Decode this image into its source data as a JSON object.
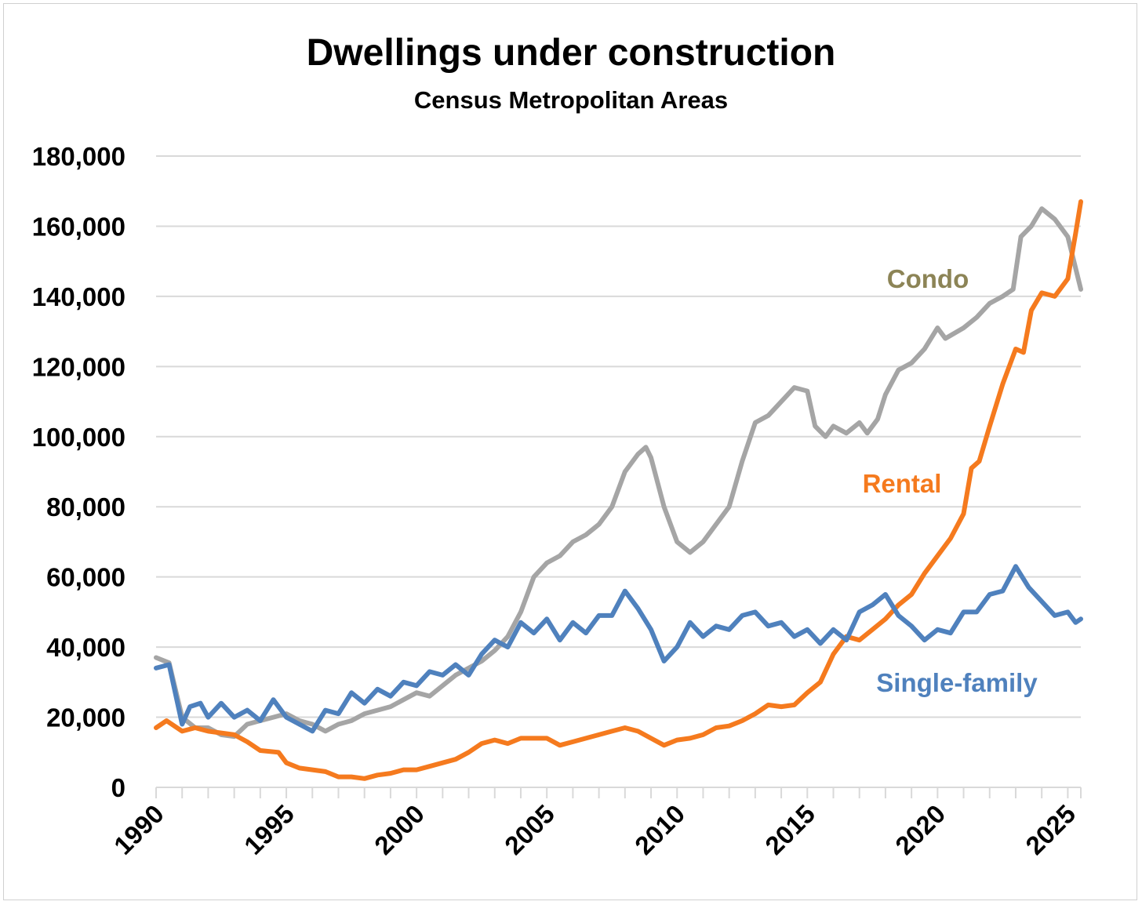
{
  "chart_data": {
    "type": "line",
    "title": "Dwellings under construction",
    "subtitle": "Census Metropolitan Areas",
    "xlabel": "",
    "ylabel": "",
    "xlim": [
      1990,
      2025.5
    ],
    "ylim": [
      0,
      180000
    ],
    "grid": true,
    "y_ticks": [
      0,
      20000,
      40000,
      60000,
      80000,
      100000,
      120000,
      140000,
      160000,
      180000
    ],
    "y_tick_labels": [
      "0",
      "20,000",
      "40,000",
      "60,000",
      "80,000",
      "100,000",
      "120,000",
      "140,000",
      "160,000",
      "180,000"
    ],
    "x_ticks": [
      1990,
      1995,
      2000,
      2005,
      2010,
      2015,
      2020,
      2025
    ],
    "x_tick_labels": [
      "1990",
      "1995",
      "2000",
      "2005",
      "2010",
      "2015",
      "2020",
      "2025"
    ],
    "legend": "inline labels",
    "series": [
      {
        "name": "Condo",
        "color": "#A5A5A5",
        "label_color": "#8C8456",
        "points": [
          [
            1990,
            37000
          ],
          [
            1990.5,
            35500
          ],
          [
            1991,
            20000
          ],
          [
            1991.5,
            17000
          ],
          [
            1992,
            17000
          ],
          [
            1992.5,
            15000
          ],
          [
            1993,
            14500
          ],
          [
            1993.5,
            18000
          ],
          [
            1994,
            19000
          ],
          [
            1994.5,
            20000
          ],
          [
            1995,
            21000
          ],
          [
            1995.5,
            19000
          ],
          [
            1996,
            18000
          ],
          [
            1996.5,
            16000
          ],
          [
            1997,
            18000
          ],
          [
            1997.5,
            19000
          ],
          [
            1998,
            21000
          ],
          [
            1998.5,
            22000
          ],
          [
            1999,
            23000
          ],
          [
            1999.5,
            25000
          ],
          [
            2000,
            27000
          ],
          [
            2000.5,
            26000
          ],
          [
            2001,
            29000
          ],
          [
            2001.5,
            32000
          ],
          [
            2002,
            34000
          ],
          [
            2002.5,
            36000
          ],
          [
            2003,
            39000
          ],
          [
            2003.5,
            43000
          ],
          [
            2004,
            50000
          ],
          [
            2004.5,
            60000
          ],
          [
            2005,
            64000
          ],
          [
            2005.5,
            66000
          ],
          [
            2006,
            70000
          ],
          [
            2006.5,
            72000
          ],
          [
            2007,
            75000
          ],
          [
            2007.5,
            80000
          ],
          [
            2008,
            90000
          ],
          [
            2008.5,
            95000
          ],
          [
            2008.8,
            97000
          ],
          [
            2009,
            94000
          ],
          [
            2009.5,
            80000
          ],
          [
            2010,
            70000
          ],
          [
            2010.5,
            67000
          ],
          [
            2011,
            70000
          ],
          [
            2011.5,
            75000
          ],
          [
            2012,
            80000
          ],
          [
            2012.5,
            93000
          ],
          [
            2013,
            104000
          ],
          [
            2013.5,
            106000
          ],
          [
            2014,
            110000
          ],
          [
            2014.5,
            114000
          ],
          [
            2015,
            113000
          ],
          [
            2015.3,
            103000
          ],
          [
            2015.7,
            100000
          ],
          [
            2016,
            103000
          ],
          [
            2016.5,
            101000
          ],
          [
            2017,
            104000
          ],
          [
            2017.3,
            101000
          ],
          [
            2017.7,
            105000
          ],
          [
            2018,
            112000
          ],
          [
            2018.5,
            119000
          ],
          [
            2019,
            121000
          ],
          [
            2019.5,
            125000
          ],
          [
            2020,
            131000
          ],
          [
            2020.3,
            128000
          ],
          [
            2021,
            131000
          ],
          [
            2021.5,
            134000
          ],
          [
            2022,
            138000
          ],
          [
            2022.5,
            140000
          ],
          [
            2022.9,
            142000
          ],
          [
            2023.2,
            157000
          ],
          [
            2023.6,
            160000
          ],
          [
            2024,
            165000
          ],
          [
            2024.5,
            162000
          ],
          [
            2025,
            157000
          ],
          [
            2025.3,
            148000
          ],
          [
            2025.5,
            142000
          ]
        ]
      },
      {
        "name": "Rental",
        "color": "#F57A1E",
        "label_color": "#F57A1E",
        "points": [
          [
            1990,
            17000
          ],
          [
            1990.4,
            19000
          ],
          [
            1991,
            16000
          ],
          [
            1991.5,
            17000
          ],
          [
            1992,
            16000
          ],
          [
            1993,
            15000
          ],
          [
            1993.5,
            13000
          ],
          [
            1994,
            10500
          ],
          [
            1994.7,
            10000
          ],
          [
            1995,
            7000
          ],
          [
            1995.5,
            5500
          ],
          [
            1996,
            5000
          ],
          [
            1996.5,
            4500
          ],
          [
            1997,
            3000
          ],
          [
            1997.5,
            3000
          ],
          [
            1998,
            2500
          ],
          [
            1998.5,
            3500
          ],
          [
            1999,
            4000
          ],
          [
            1999.5,
            5000
          ],
          [
            2000,
            5000
          ],
          [
            2000.5,
            6000
          ],
          [
            2001,
            7000
          ],
          [
            2001.5,
            8000
          ],
          [
            2002,
            10000
          ],
          [
            2002.5,
            12500
          ],
          [
            2003,
            13500
          ],
          [
            2003.5,
            12500
          ],
          [
            2004,
            14000
          ],
          [
            2005,
            14000
          ],
          [
            2005.5,
            12000
          ],
          [
            2006,
            13000
          ],
          [
            2006.5,
            14000
          ],
          [
            2007,
            15000
          ],
          [
            2007.5,
            16000
          ],
          [
            2008,
            17000
          ],
          [
            2008.5,
            16000
          ],
          [
            2009,
            14000
          ],
          [
            2009.5,
            12000
          ],
          [
            2010,
            13500
          ],
          [
            2010.5,
            14000
          ],
          [
            2011,
            15000
          ],
          [
            2011.5,
            17000
          ],
          [
            2012,
            17500
          ],
          [
            2012.5,
            19000
          ],
          [
            2013,
            21000
          ],
          [
            2013.5,
            23500
          ],
          [
            2014,
            23000
          ],
          [
            2014.5,
            23500
          ],
          [
            2015,
            27000
          ],
          [
            2015.5,
            30000
          ],
          [
            2016,
            38000
          ],
          [
            2016.5,
            43000
          ],
          [
            2017,
            42000
          ],
          [
            2017.5,
            45000
          ],
          [
            2018,
            48000
          ],
          [
            2018.5,
            52000
          ],
          [
            2019,
            55000
          ],
          [
            2019.5,
            61000
          ],
          [
            2020,
            66000
          ],
          [
            2020.5,
            71000
          ],
          [
            2021,
            78000
          ],
          [
            2021.3,
            91000
          ],
          [
            2021.6,
            93000
          ],
          [
            2022,
            103000
          ],
          [
            2022.5,
            115000
          ],
          [
            2023,
            125000
          ],
          [
            2023.3,
            124000
          ],
          [
            2023.6,
            136000
          ],
          [
            2024,
            141000
          ],
          [
            2024.5,
            140000
          ],
          [
            2025,
            145000
          ],
          [
            2025.3,
            158000
          ],
          [
            2025.5,
            167000
          ]
        ]
      },
      {
        "name": "Single-family",
        "color": "#4F81BD",
        "label_color": "#4F81BD",
        "points": [
          [
            1990,
            34000
          ],
          [
            1990.5,
            35000
          ],
          [
            1991,
            18000
          ],
          [
            1991.3,
            23000
          ],
          [
            1991.7,
            24000
          ],
          [
            1992,
            20000
          ],
          [
            1992.5,
            24000
          ],
          [
            1993,
            20000
          ],
          [
            1993.5,
            22000
          ],
          [
            1994,
            19000
          ],
          [
            1994.5,
            25000
          ],
          [
            1995,
            20000
          ],
          [
            1995.5,
            18000
          ],
          [
            1996,
            16000
          ],
          [
            1996.5,
            22000
          ],
          [
            1997,
            21000
          ],
          [
            1997.5,
            27000
          ],
          [
            1998,
            24000
          ],
          [
            1998.5,
            28000
          ],
          [
            1999,
            26000
          ],
          [
            1999.5,
            30000
          ],
          [
            2000,
            29000
          ],
          [
            2000.5,
            33000
          ],
          [
            2001,
            32000
          ],
          [
            2001.5,
            35000
          ],
          [
            2002,
            32000
          ],
          [
            2002.5,
            38000
          ],
          [
            2003,
            42000
          ],
          [
            2003.5,
            40000
          ],
          [
            2004,
            47000
          ],
          [
            2004.5,
            44000
          ],
          [
            2005,
            48000
          ],
          [
            2005.5,
            42000
          ],
          [
            2006,
            47000
          ],
          [
            2006.5,
            44000
          ],
          [
            2007,
            49000
          ],
          [
            2007.5,
            49000
          ],
          [
            2008,
            56000
          ],
          [
            2008.5,
            51000
          ],
          [
            2009,
            45000
          ],
          [
            2009.5,
            36000
          ],
          [
            2010,
            40000
          ],
          [
            2010.5,
            47000
          ],
          [
            2011,
            43000
          ],
          [
            2011.5,
            46000
          ],
          [
            2012,
            45000
          ],
          [
            2012.5,
            49000
          ],
          [
            2013,
            50000
          ],
          [
            2013.5,
            46000
          ],
          [
            2014,
            47000
          ],
          [
            2014.5,
            43000
          ],
          [
            2015,
            45000
          ],
          [
            2015.5,
            41000
          ],
          [
            2016,
            45000
          ],
          [
            2016.5,
            42000
          ],
          [
            2017,
            50000
          ],
          [
            2017.5,
            52000
          ],
          [
            2018,
            55000
          ],
          [
            2018.5,
            49000
          ],
          [
            2019,
            46000
          ],
          [
            2019.5,
            42000
          ],
          [
            2020,
            45000
          ],
          [
            2020.5,
            44000
          ],
          [
            2021,
            50000
          ],
          [
            2021.5,
            50000
          ],
          [
            2022,
            55000
          ],
          [
            2022.5,
            56000
          ],
          [
            2023,
            63000
          ],
          [
            2023.5,
            57000
          ],
          [
            2024,
            53000
          ],
          [
            2024.5,
            49000
          ],
          [
            2025,
            50000
          ],
          [
            2025.3,
            47000
          ],
          [
            2025.5,
            48000
          ]
        ]
      }
    ]
  }
}
